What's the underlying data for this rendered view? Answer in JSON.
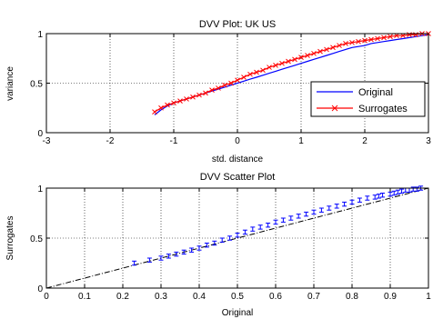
{
  "chart_data": [
    {
      "type": "line",
      "title": "DVV Plot: UK US",
      "xlabel": "std. distance",
      "ylabel": "variance",
      "xlim": [
        -3,
        3
      ],
      "ylim": [
        0,
        1
      ],
      "xticks": [
        "-3",
        "-2",
        "-1",
        "0",
        "1",
        "2",
        "3"
      ],
      "yticks": [
        "0",
        "0.5",
        "1"
      ],
      "grid": true,
      "legend_position": "lower-right",
      "series": [
        {
          "name": "Original",
          "color": "#0000ff",
          "marker": "none",
          "x": [
            -1.3,
            -1.2,
            -1.1,
            -1.0,
            -0.9,
            -0.8,
            -0.7,
            -0.6,
            -0.5,
            -0.4,
            -0.3,
            -0.2,
            -0.1,
            0.0,
            0.1,
            0.2,
            0.3,
            0.4,
            0.5,
            0.6,
            0.7,
            0.8,
            0.9,
            1.0,
            1.1,
            1.2,
            1.3,
            1.4,
            1.5,
            1.6,
            1.7,
            1.8,
            1.9,
            2.0,
            2.1,
            2.2,
            2.3,
            2.4,
            2.5,
            2.6,
            2.7,
            2.8,
            2.9,
            3.0
          ],
          "y": [
            0.18,
            0.23,
            0.27,
            0.3,
            0.32,
            0.34,
            0.36,
            0.38,
            0.4,
            0.42,
            0.44,
            0.46,
            0.48,
            0.5,
            0.52,
            0.54,
            0.56,
            0.58,
            0.6,
            0.62,
            0.64,
            0.66,
            0.68,
            0.7,
            0.72,
            0.74,
            0.76,
            0.78,
            0.8,
            0.82,
            0.84,
            0.86,
            0.87,
            0.88,
            0.9,
            0.91,
            0.92,
            0.93,
            0.94,
            0.95,
            0.96,
            0.97,
            0.98,
            0.99
          ]
        },
        {
          "name": "Surrogates",
          "color": "#ff0000",
          "marker": "x",
          "x": [
            -1.3,
            -1.2,
            -1.1,
            -1.0,
            -0.9,
            -0.8,
            -0.7,
            -0.6,
            -0.5,
            -0.4,
            -0.3,
            -0.2,
            -0.1,
            0.0,
            0.1,
            0.2,
            0.3,
            0.4,
            0.5,
            0.6,
            0.7,
            0.8,
            0.9,
            1.0,
            1.1,
            1.2,
            1.3,
            1.4,
            1.5,
            1.6,
            1.7,
            1.8,
            1.9,
            2.0,
            2.1,
            2.2,
            2.3,
            2.4,
            2.5,
            2.6,
            2.7,
            2.8,
            2.9,
            3.0
          ],
          "y": [
            0.21,
            0.25,
            0.28,
            0.3,
            0.32,
            0.34,
            0.36,
            0.38,
            0.4,
            0.43,
            0.45,
            0.48,
            0.5,
            0.53,
            0.56,
            0.59,
            0.61,
            0.63,
            0.66,
            0.68,
            0.7,
            0.72,
            0.74,
            0.76,
            0.78,
            0.8,
            0.82,
            0.84,
            0.86,
            0.88,
            0.9,
            0.91,
            0.92,
            0.93,
            0.94,
            0.95,
            0.96,
            0.97,
            0.98,
            0.98,
            0.99,
            0.99,
            1.0,
            1.0
          ]
        }
      ]
    },
    {
      "type": "scatter",
      "title": "DVV Scatter Plot",
      "xlabel": "Original",
      "ylabel": "Surrogates",
      "xlim": [
        0,
        1
      ],
      "ylim": [
        0,
        1
      ],
      "xticks": [
        "0",
        "0.1",
        "0.2",
        "0.3",
        "0.4",
        "0.5",
        "0.6",
        "0.7",
        "0.8",
        "0.9",
        "1"
      ],
      "yticks": [
        "0",
        "0.5",
        "1"
      ],
      "grid": true,
      "reference_line": {
        "style": "dash-dot",
        "color": "#000000",
        "from": [
          0,
          0
        ],
        "to": [
          1,
          1
        ]
      },
      "series": [
        {
          "color": "#0000ff",
          "marker": "errorbar",
          "x": [
            0.23,
            0.27,
            0.3,
            0.32,
            0.34,
            0.36,
            0.38,
            0.4,
            0.42,
            0.44,
            0.46,
            0.48,
            0.5,
            0.52,
            0.54,
            0.56,
            0.58,
            0.6,
            0.62,
            0.64,
            0.66,
            0.68,
            0.7,
            0.72,
            0.74,
            0.76,
            0.78,
            0.8,
            0.82,
            0.84,
            0.86,
            0.87,
            0.88,
            0.9,
            0.91,
            0.92,
            0.93,
            0.94,
            0.95,
            0.96,
            0.97,
            0.98
          ],
          "y": [
            0.25,
            0.28,
            0.3,
            0.32,
            0.34,
            0.36,
            0.38,
            0.4,
            0.43,
            0.45,
            0.48,
            0.5,
            0.53,
            0.56,
            0.59,
            0.61,
            0.63,
            0.66,
            0.68,
            0.7,
            0.72,
            0.74,
            0.76,
            0.78,
            0.8,
            0.82,
            0.84,
            0.86,
            0.88,
            0.9,
            0.91,
            0.92,
            0.93,
            0.94,
            0.95,
            0.96,
            0.97,
            0.98,
            0.98,
            0.99,
            0.99,
            1.0
          ],
          "error": 0.02
        }
      ]
    }
  ]
}
